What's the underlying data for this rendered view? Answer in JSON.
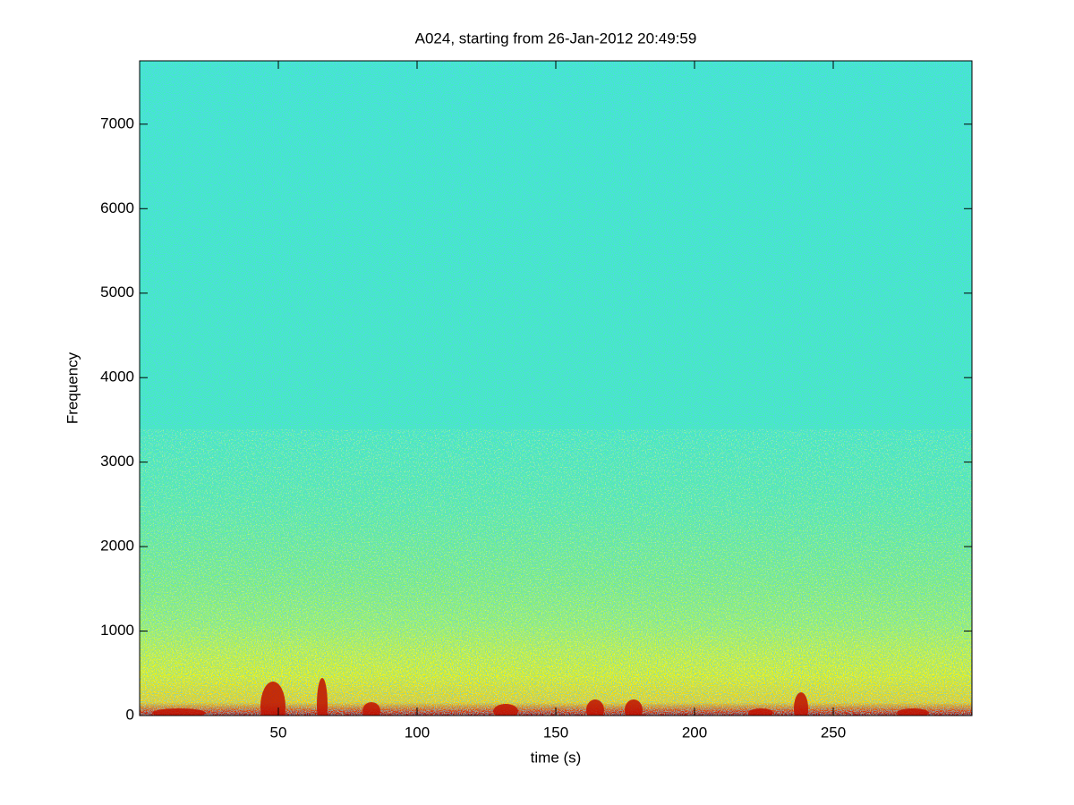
{
  "chart_data": {
    "type": "spectrogram",
    "title": "A024, starting from 26-Jan-2012 20:49:59",
    "xlabel": "time (s)",
    "ylabel": "Frequency",
    "xlim": [
      0,
      300
    ],
    "xticks": [
      50,
      100,
      150,
      200,
      250
    ],
    "ylim": [
      0,
      7750
    ],
    "yticks": [
      0,
      1000,
      2000,
      3000,
      4000,
      5000,
      6000,
      7000
    ],
    "colormap": "jet"
  }
}
